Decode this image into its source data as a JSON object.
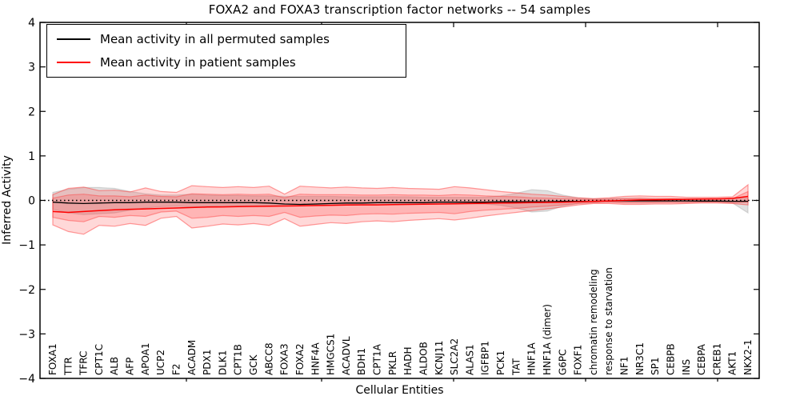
{
  "figure": {
    "title": "FOXA2 and FOXA3 transcription factor networks -- 54 samples",
    "xlabel": "Cellular Entities",
    "ylabel": "Inferred Activity"
  },
  "legend": {
    "entries": [
      {
        "label": "Mean activity in all permuted samples",
        "color": "#000000"
      },
      {
        "label": "Mean activity in patient samples",
        "color": "#ff0000"
      }
    ]
  },
  "colors": {
    "permuted_line": "#000000",
    "patient_line": "#ff0000",
    "permuted_band": "#999999",
    "patient_band": "#ff3c3c",
    "zero_line": "#000000",
    "frame": "#000000"
  },
  "chart_data": {
    "type": "line",
    "title": "FOXA2 and FOXA3 transcription factor networks -- 54 samples",
    "xlabel": "Cellular Entities",
    "ylabel": "Inferred Activity",
    "ylim": [
      -4,
      4
    ],
    "yticks": [
      -4,
      -3,
      -2,
      -1,
      0,
      1,
      2,
      3,
      4
    ],
    "grid": false,
    "legend_position": "upper left",
    "zero_line_style": "dotted",
    "x_tick_label_rotation": 90,
    "categories": [
      "FOXA1",
      "TTR",
      "TFRC",
      "CPT1C",
      "ALB",
      "AFP",
      "APOA1",
      "UCP2",
      "F2",
      "ACADM",
      "PDX1",
      "DLK1",
      "CPT1B",
      "GCK",
      "ABCC8",
      "FOXA3",
      "FOXA2",
      "HNF4A",
      "HMGCS1",
      "ACADVL",
      "BDH1",
      "CPT1A",
      "PKLR",
      "HADH",
      "ALDOB",
      "KCNJ11",
      "SLC2A2",
      "ALAS1",
      "IGFBP1",
      "PCK1",
      "TAT",
      "HNF1A",
      "HNF1A (dimer)",
      "G6PC",
      "FOXF1",
      "chromatin remodeling",
      "response to starvation",
      "NF1",
      "NR3C1",
      "SP1",
      "CEBPB",
      "INS",
      "CEBPA",
      "CREB1",
      "AKT1",
      "NKX2-1"
    ],
    "series": [
      {
        "name": "Mean activity in all permuted samples",
        "color": "#000000",
        "width": 1.3,
        "values": [
          -0.04,
          -0.06,
          -0.07,
          -0.06,
          -0.05,
          -0.05,
          -0.04,
          -0.04,
          -0.04,
          -0.05,
          -0.05,
          -0.05,
          -0.05,
          -0.05,
          -0.06,
          -0.08,
          -0.09,
          -0.08,
          -0.07,
          -0.06,
          -0.06,
          -0.05,
          -0.05,
          -0.05,
          -0.05,
          -0.04,
          -0.04,
          -0.04,
          -0.04,
          -0.03,
          -0.03,
          -0.03,
          -0.03,
          -0.02,
          -0.02,
          -0.02,
          -0.01,
          -0.01,
          -0.01,
          -0.01,
          -0.01,
          -0.01,
          -0.015,
          -0.015,
          -0.02,
          -0.02
        ]
      },
      {
        "name": "Mean activity in patient samples",
        "color": "#ff0000",
        "width": 1.5,
        "values": [
          -0.25,
          -0.27,
          -0.25,
          -0.23,
          -0.21,
          -0.2,
          -0.19,
          -0.18,
          -0.17,
          -0.16,
          -0.15,
          -0.145,
          -0.14,
          -0.135,
          -0.13,
          -0.125,
          -0.12,
          -0.115,
          -0.11,
          -0.105,
          -0.1,
          -0.1,
          -0.095,
          -0.09,
          -0.085,
          -0.08,
          -0.075,
          -0.07,
          -0.065,
          -0.06,
          -0.055,
          -0.05,
          -0.045,
          -0.04,
          -0.03,
          -0.02,
          -0.01,
          0,
          0.01,
          0.015,
          0.02,
          0.025,
          0.03,
          0.035,
          0.045,
          0.09
        ]
      }
    ],
    "bands": [
      {
        "name": "permuted-samples-range",
        "color": "#999999",
        "fill_opacity": 0.3,
        "edge_opacity": 0.35,
        "hi": [
          0.18,
          0.25,
          0.29,
          0.29,
          0.27,
          0.2,
          0.15,
          0.12,
          0.12,
          0.14,
          0.12,
          0.11,
          0.11,
          0.1,
          0.1,
          0.09,
          0.09,
          0.09,
          0.09,
          0.08,
          0.08,
          0.08,
          0.08,
          0.08,
          0.07,
          0.07,
          0.07,
          0.07,
          0.07,
          0.1,
          0.16,
          0.24,
          0.22,
          0.12,
          0.06,
          0.04,
          0.04,
          0.05,
          0.05,
          0.04,
          0.04,
          0.04,
          0.04,
          0.04,
          0.05,
          0.06
        ],
        "lo": [
          -0.2,
          -0.28,
          -0.32,
          -0.3,
          -0.28,
          -0.22,
          -0.17,
          -0.14,
          -0.13,
          -0.15,
          -0.13,
          -0.12,
          -0.12,
          -0.11,
          -0.11,
          -0.1,
          -0.1,
          -0.1,
          -0.1,
          -0.09,
          -0.09,
          -0.09,
          -0.09,
          -0.09,
          -0.08,
          -0.08,
          -0.08,
          -0.08,
          -0.08,
          -0.11,
          -0.17,
          -0.26,
          -0.24,
          -0.13,
          -0.07,
          -0.05,
          -0.04,
          -0.05,
          -0.05,
          -0.05,
          -0.04,
          -0.04,
          -0.04,
          -0.04,
          -0.06,
          -0.28
        ]
      },
      {
        "name": "patient-samples-range-outer",
        "color": "#ff3c3c",
        "fill_opacity": 0.2,
        "edge_opacity": 0.5,
        "hi": [
          0.13,
          0.27,
          0.3,
          0.22,
          0.23,
          0.19,
          0.28,
          0.2,
          0.18,
          0.33,
          0.31,
          0.29,
          0.31,
          0.29,
          0.32,
          0.14,
          0.32,
          0.3,
          0.28,
          0.3,
          0.28,
          0.27,
          0.29,
          0.27,
          0.26,
          0.25,
          0.31,
          0.28,
          0.24,
          0.2,
          0.17,
          0.14,
          0.12,
          0.09,
          0.06,
          0.04,
          0.06,
          0.09,
          0.1,
          0.09,
          0.09,
          0.07,
          0.07,
          0.07,
          0.08,
          0.35
        ],
        "lo": [
          -0.55,
          -0.7,
          -0.76,
          -0.56,
          -0.58,
          -0.52,
          -0.56,
          -0.4,
          -0.36,
          -0.62,
          -0.58,
          -0.53,
          -0.55,
          -0.52,
          -0.56,
          -0.41,
          -0.58,
          -0.54,
          -0.5,
          -0.52,
          -0.48,
          -0.46,
          -0.48,
          -0.45,
          -0.43,
          -0.41,
          -0.44,
          -0.4,
          -0.35,
          -0.31,
          -0.27,
          -0.23,
          -0.19,
          -0.15,
          -0.1,
          -0.07,
          -0.07,
          -0.09,
          -0.09,
          -0.08,
          -0.08,
          -0.07,
          -0.06,
          -0.06,
          -0.07,
          -0.1
        ]
      },
      {
        "name": "patient-samples-range-inner",
        "color": "#ff3c3c",
        "fill_opacity": 0.22,
        "edge_opacity": 0.45,
        "hi": [
          0.05,
          0.12,
          0.14,
          0.1,
          0.1,
          0.08,
          0.12,
          0.09,
          0.08,
          0.15,
          0.14,
          0.13,
          0.14,
          0.13,
          0.14,
          0.06,
          0.14,
          0.13,
          0.13,
          0.13,
          0.12,
          0.12,
          0.13,
          0.12,
          0.12,
          0.11,
          0.13,
          0.12,
          0.1,
          0.09,
          0.08,
          0.06,
          0.05,
          0.04,
          0.03,
          0.02,
          0.03,
          0.04,
          0.05,
          0.04,
          0.04,
          0.03,
          0.03,
          0.03,
          0.04,
          0.2
        ],
        "lo": [
          -0.38,
          -0.45,
          -0.48,
          -0.36,
          -0.38,
          -0.34,
          -0.36,
          -0.26,
          -0.24,
          -0.4,
          -0.38,
          -0.34,
          -0.36,
          -0.34,
          -0.36,
          -0.27,
          -0.38,
          -0.35,
          -0.33,
          -0.34,
          -0.31,
          -0.3,
          -0.31,
          -0.29,
          -0.28,
          -0.27,
          -0.3,
          -0.25,
          -0.22,
          -0.2,
          -0.18,
          -0.15,
          -0.13,
          -0.1,
          -0.07,
          -0.05,
          -0.04,
          -0.06,
          -0.06,
          -0.05,
          -0.05,
          -0.05,
          -0.04,
          -0.04,
          -0.05,
          -0.04
        ]
      }
    ]
  }
}
